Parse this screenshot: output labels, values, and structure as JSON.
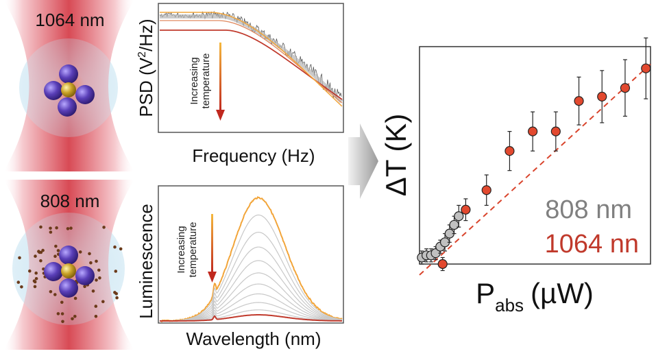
{
  "lasers": {
    "top_label": "1064 nm",
    "bottom_label": "808 nm"
  },
  "psd_panel": {
    "ylabel_main": "PSD (V",
    "ylabel_sup": "2",
    "ylabel_end": "/Hz)",
    "xlabel": "Frequency (Hz)",
    "arrow_text_1": "Increasing",
    "arrow_text_2": "temperature"
  },
  "lum_panel": {
    "ylabel": "Luminescence",
    "xlabel": "Wavelength (nm)",
    "arrow_text_1": "Increasing",
    "arrow_text_2": "temperature"
  },
  "chart_data": {
    "type": "scatter",
    "title": "",
    "xlabel_main": "P",
    "xlabel_sub": "abs",
    "xlabel_unit": "(µW)",
    "ylabel": "ΔT (K)",
    "xlim": [
      0,
      100
    ],
    "ylim": [
      0,
      100
    ],
    "legend_position": "center-right",
    "series": [
      {
        "name": "808 nm",
        "color": "#c0c0c0",
        "label_color": "#808080",
        "x": [
          1,
          3,
          5,
          7,
          9,
          11,
          13,
          15,
          17
        ],
        "y": [
          3,
          4,
          4,
          5,
          8,
          10,
          14,
          18,
          22
        ],
        "err": [
          3,
          3,
          3,
          3,
          3,
          4,
          4,
          4,
          5
        ]
      },
      {
        "name": "1064 nn",
        "color": "#e2492f",
        "label_color": "#c0392b",
        "x": [
          10,
          20,
          29,
          39,
          49,
          59,
          69,
          79,
          89,
          98
        ],
        "y": [
          0,
          25,
          34,
          52,
          61,
          61,
          75,
          77,
          81,
          90
        ],
        "err": [
          3,
          5,
          7,
          9,
          9,
          9,
          11,
          12,
          13,
          14
        ]
      }
    ],
    "fit_line": {
      "x": [
        0,
        100
      ],
      "y": [
        -5,
        92
      ],
      "color": "#d9442c"
    }
  }
}
